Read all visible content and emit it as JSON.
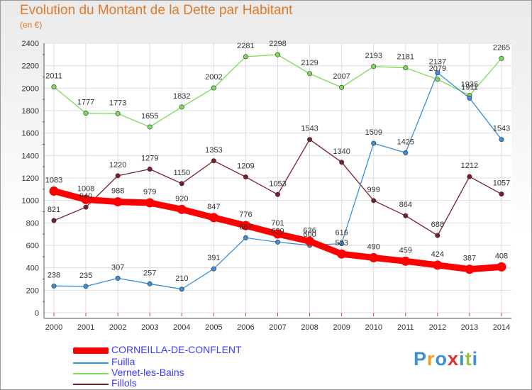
{
  "header": {
    "title": "Evolution du Montant de la Dette par Habitant",
    "subtitle": "(en €)"
  },
  "logo": {
    "text": "Proxiti"
  },
  "chart_data": {
    "type": "line",
    "title": "Evolution du Montant de la Dette par Habitant",
    "subtitle": "(en €)",
    "x": [
      "2000",
      "2001",
      "2002",
      "2003",
      "2004",
      "2005",
      "2006",
      "2007",
      "2008",
      "2009",
      "2010",
      "2011",
      "2012",
      "2013",
      "2014"
    ],
    "ylim": [
      0,
      2400
    ],
    "yticks": [
      0,
      200,
      400,
      600,
      800,
      1000,
      1200,
      1400,
      1600,
      1800,
      2000,
      2200,
      2400
    ],
    "grid": true,
    "legend_position": "bottom",
    "series": [
      {
        "name": "CORNEILLA-DE-CONFLENT",
        "color": "#ff0000",
        "values": [
          1083,
          1008,
          988,
          979,
          920,
          847,
          776,
          701,
          636,
          523,
          490,
          459,
          424,
          387,
          408
        ]
      },
      {
        "name": "Fuilla",
        "color": "#3a8fd6",
        "values": [
          238,
          235,
          307,
          257,
          210,
          391,
          667,
          629,
          600,
          616,
          1509,
          1425,
          2137,
          1911,
          1543
        ]
      },
      {
        "name": "Vernet-les-Bains",
        "color": "#7ed957",
        "values": [
          2011,
          1777,
          1773,
          1655,
          1832,
          2002,
          2281,
          2298,
          2129,
          2007,
          2193,
          2181,
          2079,
          1935,
          2265
        ]
      },
      {
        "name": "Fillols",
        "color": "#7a1f2a",
        "values": [
          821,
          940,
          1220,
          1279,
          1150,
          1353,
          1209,
          1053,
          1543,
          1340,
          999,
          864,
          688,
          1212,
          1057
        ]
      }
    ]
  }
}
